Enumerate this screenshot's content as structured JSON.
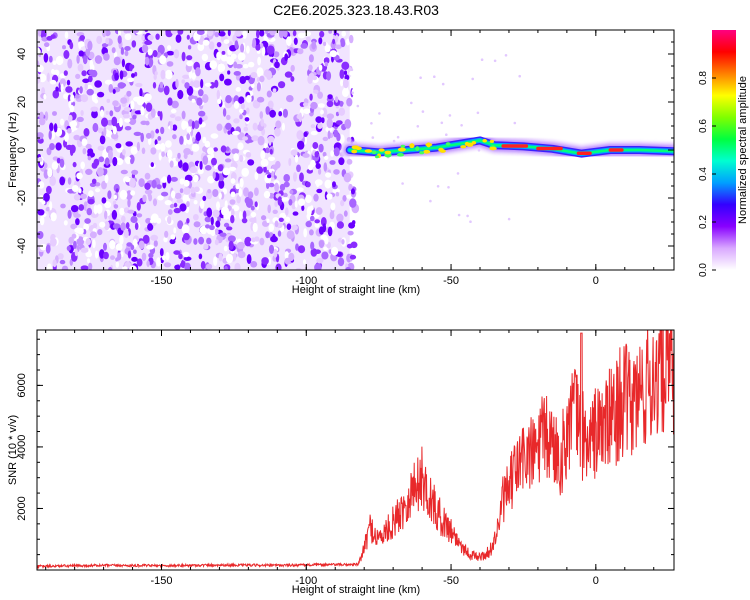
{
  "title": "C2E6.2025.323.18.43.R03",
  "chart_data": [
    {
      "type": "heatmap",
      "xlabel": "Height of straight line (km)",
      "ylabel": "Frequency (Hz)",
      "xlim": [
        -193,
        27
      ],
      "ylim": [
        -50,
        50
      ],
      "x_ticks": [
        -150,
        -100,
        -50,
        0
      ],
      "y_ticks": [
        -40,
        -20,
        0,
        20,
        40
      ],
      "noise_region": {
        "x_range": [
          -193,
          -85
        ],
        "y_range": [
          -50,
          50
        ]
      },
      "signal_track": [
        {
          "x": -85,
          "y": 0
        },
        {
          "x": -75,
          "y": -1
        },
        {
          "x": -65,
          "y": 0
        },
        {
          "x": -55,
          "y": 1
        },
        {
          "x": -45,
          "y": 3
        },
        {
          "x": -40,
          "y": 4
        },
        {
          "x": -35,
          "y": 2
        },
        {
          "x": -25,
          "y": 1.5
        },
        {
          "x": -15,
          "y": 0.5
        },
        {
          "x": -5,
          "y": -1.5
        },
        {
          "x": 5,
          "y": 0
        },
        {
          "x": 15,
          "y": 0
        },
        {
          "x": 27,
          "y": -0.5
        }
      ],
      "colorbar": {
        "label": "Normalized spectral amplitude",
        "range": [
          0,
          1
        ],
        "ticks": [
          "0.0",
          "0.2",
          "0.4",
          "0.6",
          "0.8"
        ],
        "colors": [
          "#ffffff",
          "#d9a8ff",
          "#8800ff",
          "#3300ff",
          "#00a0ff",
          "#00ffd0",
          "#00ff40",
          "#80ff00",
          "#ffff00",
          "#ff8000",
          "#ff0000",
          "#ff0080"
        ]
      }
    },
    {
      "type": "line",
      "xlabel": "Height of straight line (km)",
      "ylabel": "SNR (10 * v/v)",
      "xlim": [
        -193,
        27
      ],
      "ylim": [
        0,
        7800
      ],
      "x_ticks": [
        -150,
        -100,
        -50,
        0
      ],
      "y_ticks": [
        2000,
        4000,
        6000
      ],
      "series": [
        {
          "color": "#e8282a",
          "points": [
            [
              -193,
              120
            ],
            [
              -170,
              150
            ],
            [
              -150,
              140
            ],
            [
              -130,
              160
            ],
            [
              -110,
              150
            ],
            [
              -95,
              170
            ],
            [
              -82,
              180
            ],
            [
              -80,
              700
            ],
            [
              -78,
              1400
            ],
            [
              -75,
              1000
            ],
            [
              -72,
              1300
            ],
            [
              -68,
              1800
            ],
            [
              -65,
              2300
            ],
            [
              -62,
              2800
            ],
            [
              -60,
              3000
            ],
            [
              -58,
              2500
            ],
            [
              -55,
              1900
            ],
            [
              -52,
              1500
            ],
            [
              -50,
              1300
            ],
            [
              -48,
              1000
            ],
            [
              -46,
              750
            ],
            [
              -44,
              550
            ],
            [
              -42,
              450
            ],
            [
              -40,
              420
            ],
            [
              -38,
              500
            ],
            [
              -36,
              700
            ],
            [
              -34,
              1300
            ],
            [
              -32,
              2300
            ],
            [
              -30,
              2600
            ],
            [
              -28,
              3200
            ],
            [
              -26,
              3500
            ],
            [
              -24,
              3800
            ],
            [
              -22,
              3700
            ],
            [
              -20,
              4000
            ],
            [
              -18,
              4300
            ],
            [
              -15,
              4100
            ],
            [
              -12,
              3600
            ],
            [
              -10,
              4500
            ],
            [
              -8,
              5200
            ],
            [
              -6,
              4800
            ],
            [
              -4,
              4300
            ],
            [
              -2,
              4100
            ],
            [
              0,
              4500
            ],
            [
              3,
              4700
            ],
            [
              6,
              5000
            ],
            [
              9,
              5600
            ],
            [
              12,
              5300
            ],
            [
              15,
              5700
            ],
            [
              18,
              6000
            ],
            [
              21,
              6400
            ],
            [
              24,
              6700
            ],
            [
              27,
              6300
            ]
          ]
        }
      ]
    }
  ]
}
